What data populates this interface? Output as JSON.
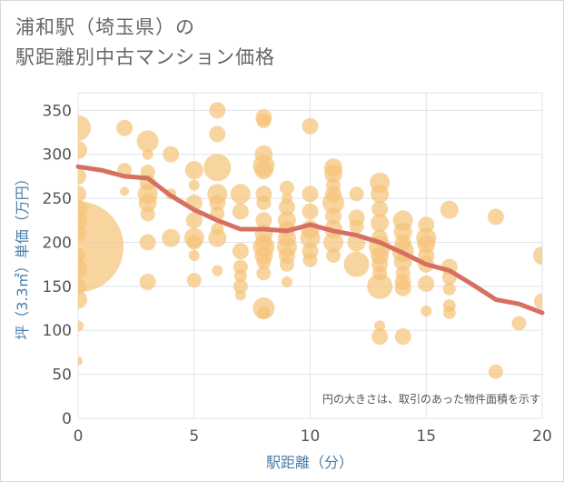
{
  "title_lines": [
    "浦和駅（埼玉県）の",
    "駅距離別中古マンション価格"
  ],
  "note": "円の大きさは、取引のあった物件面積を示す",
  "chart_data": {
    "type": "scatter",
    "xlabel": "駅距離（分）",
    "ylabel": "坪（3.3㎡）単価（万円）",
    "xlim": [
      0,
      20
    ],
    "ylim": [
      0,
      370
    ],
    "xticks": [
      0,
      5,
      10,
      15,
      20
    ],
    "yticks": [
      0,
      50,
      100,
      150,
      200,
      250,
      300,
      350
    ],
    "grid": true,
    "colors": {
      "bubble": "#f5c47a",
      "trend": "#d77060",
      "grid": "#dde5ec",
      "axis_text": "#4a7da8"
    },
    "points": [
      [
        0,
        330,
        14
      ],
      [
        0,
        305,
        10
      ],
      [
        0,
        275,
        9
      ],
      [
        0,
        255,
        9
      ],
      [
        0,
        238,
        10
      ],
      [
        0,
        225,
        10
      ],
      [
        0,
        210,
        9
      ],
      [
        0,
        195,
        50
      ],
      [
        0,
        185,
        8
      ],
      [
        0,
        170,
        10
      ],
      [
        0,
        150,
        9
      ],
      [
        0,
        135,
        10
      ],
      [
        0,
        105,
        6
      ],
      [
        0,
        65,
        5
      ],
      [
        2,
        330,
        9
      ],
      [
        2,
        282,
        8
      ],
      [
        2,
        258,
        5
      ],
      [
        3,
        315,
        12
      ],
      [
        3,
        300,
        6
      ],
      [
        3,
        280,
        8
      ],
      [
        3,
        268,
        9
      ],
      [
        3,
        255,
        11
      ],
      [
        3,
        245,
        10
      ],
      [
        3,
        232,
        8
      ],
      [
        3,
        200,
        9
      ],
      [
        3,
        155,
        9
      ],
      [
        4,
        300,
        9
      ],
      [
        4,
        255,
        6
      ],
      [
        4,
        205,
        10
      ],
      [
        5,
        282,
        10
      ],
      [
        5,
        265,
        6
      ],
      [
        5,
        245,
        9
      ],
      [
        5,
        225,
        9
      ],
      [
        5,
        205,
        11
      ],
      [
        5,
        200,
        8
      ],
      [
        5,
        185,
        6
      ],
      [
        5,
        157,
        8
      ],
      [
        6,
        350,
        9
      ],
      [
        6,
        323,
        9
      ],
      [
        6,
        285,
        15
      ],
      [
        6,
        255,
        11
      ],
      [
        6,
        245,
        9
      ],
      [
        6,
        233,
        8
      ],
      [
        6,
        215,
        7
      ],
      [
        6,
        205,
        10
      ],
      [
        6,
        168,
        6
      ],
      [
        7,
        255,
        11
      ],
      [
        7,
        235,
        9
      ],
      [
        7,
        190,
        9
      ],
      [
        7,
        172,
        8
      ],
      [
        7,
        162,
        7
      ],
      [
        7,
        150,
        8
      ],
      [
        7,
        140,
        6
      ],
      [
        8,
        342,
        9
      ],
      [
        8,
        338,
        8
      ],
      [
        8,
        300,
        10
      ],
      [
        8,
        287,
        12
      ],
      [
        8,
        282,
        10
      ],
      [
        8,
        255,
        9
      ],
      [
        8,
        245,
        8
      ],
      [
        8,
        225,
        9
      ],
      [
        8,
        210,
        10
      ],
      [
        8,
        200,
        9
      ],
      [
        8,
        195,
        12
      ],
      [
        8,
        185,
        10
      ],
      [
        8,
        178,
        8
      ],
      [
        8,
        165,
        8
      ],
      [
        8,
        125,
        12
      ],
      [
        8,
        120,
        7
      ],
      [
        9,
        262,
        8
      ],
      [
        9,
        250,
        6
      ],
      [
        9,
        240,
        9
      ],
      [
        9,
        225,
        10
      ],
      [
        9,
        215,
        9
      ],
      [
        9,
        205,
        10
      ],
      [
        9,
        195,
        11
      ],
      [
        9,
        185,
        9
      ],
      [
        9,
        175,
        8
      ],
      [
        9,
        155,
        6
      ],
      [
        10,
        332,
        9
      ],
      [
        10,
        255,
        9
      ],
      [
        10,
        235,
        9
      ],
      [
        10,
        215,
        10
      ],
      [
        10,
        205,
        11
      ],
      [
        10,
        190,
        9
      ],
      [
        10,
        180,
        8
      ],
      [
        11,
        285,
        10
      ],
      [
        11,
        278,
        10
      ],
      [
        11,
        265,
        8
      ],
      [
        11,
        255,
        9
      ],
      [
        11,
        245,
        12
      ],
      [
        11,
        230,
        9
      ],
      [
        11,
        215,
        10
      ],
      [
        11,
        200,
        11
      ],
      [
        11,
        185,
        8
      ],
      [
        12,
        255,
        8
      ],
      [
        12,
        228,
        9
      ],
      [
        12,
        218,
        8
      ],
      [
        12,
        200,
        10
      ],
      [
        12,
        175,
        14
      ],
      [
        13,
        268,
        11
      ],
      [
        13,
        255,
        10
      ],
      [
        13,
        238,
        9
      ],
      [
        13,
        222,
        10
      ],
      [
        13,
        205,
        9
      ],
      [
        13,
        195,
        12
      ],
      [
        13,
        185,
        10
      ],
      [
        13,
        175,
        9
      ],
      [
        13,
        165,
        8
      ],
      [
        13,
        150,
        14
      ],
      [
        13,
        105,
        6
      ],
      [
        13,
        93,
        9
      ],
      [
        14,
        225,
        11
      ],
      [
        14,
        212,
        10
      ],
      [
        14,
        200,
        9
      ],
      [
        14,
        190,
        12
      ],
      [
        14,
        178,
        10
      ],
      [
        14,
        165,
        8
      ],
      [
        14,
        155,
        9
      ],
      [
        14,
        148,
        9
      ],
      [
        14,
        93,
        9
      ],
      [
        15,
        220,
        9
      ],
      [
        15,
        205,
        11
      ],
      [
        15,
        198,
        10
      ],
      [
        15,
        185,
        9
      ],
      [
        15,
        175,
        9
      ],
      [
        15,
        153,
        9
      ],
      [
        15,
        122,
        6
      ],
      [
        16,
        237,
        10
      ],
      [
        16,
        172,
        9
      ],
      [
        16,
        160,
        8
      ],
      [
        16,
        147,
        7
      ],
      [
        16,
        128,
        7
      ],
      [
        16,
        120,
        7
      ],
      [
        18,
        229,
        9
      ],
      [
        18,
        53,
        8
      ],
      [
        19,
        108,
        8
      ],
      [
        20,
        185,
        10
      ],
      [
        20,
        133,
        9
      ]
    ],
    "trend": [
      [
        0,
        286
      ],
      [
        1,
        282
      ],
      [
        2,
        275
      ],
      [
        3,
        273
      ],
      [
        4,
        253
      ],
      [
        5,
        237
      ],
      [
        6,
        225
      ],
      [
        7,
        215
      ],
      [
        8,
        215
      ],
      [
        9,
        213
      ],
      [
        10,
        220
      ],
      [
        11,
        213
      ],
      [
        12,
        208
      ],
      [
        13,
        200
      ],
      [
        14,
        188
      ],
      [
        15,
        175
      ],
      [
        16,
        168
      ],
      [
        17,
        152
      ],
      [
        18,
        135
      ],
      [
        19,
        130
      ],
      [
        20,
        120
      ]
    ]
  }
}
